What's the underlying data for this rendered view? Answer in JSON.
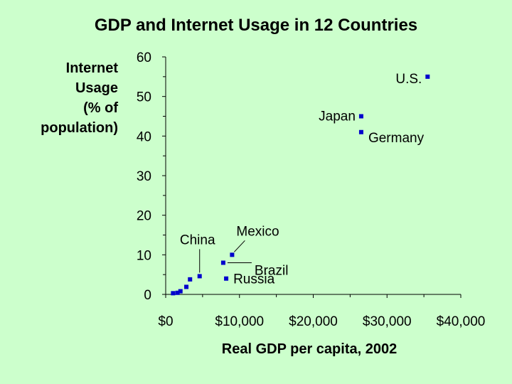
{
  "chart_data": {
    "type": "scatter",
    "title": "GDP and Internet Usage in 12 Countries",
    "ylabel_lines": [
      "Internet",
      "Usage",
      "(% of",
      "population)"
    ],
    "xlabel": "Real GDP per capita, 2002",
    "xlim": [
      0,
      40000
    ],
    "ylim": [
      0,
      60
    ],
    "x_ticks": [
      0,
      10000,
      20000,
      30000,
      40000
    ],
    "x_tick_labels": [
      "$0",
      "$10,000",
      "$20,000",
      "$30,000",
      "$40,000"
    ],
    "y_ticks": [
      0,
      10,
      20,
      30,
      40,
      50,
      60
    ],
    "y_tick_labels": [
      "0",
      "10",
      "20",
      "30",
      "40",
      "50",
      "60"
    ],
    "marker_color": "#0000cc",
    "points": [
      {
        "x": 35500,
        "y": 55,
        "label": "U.S."
      },
      {
        "x": 26500,
        "y": 45,
        "label": "Japan"
      },
      {
        "x": 26500,
        "y": 41,
        "label": "Germany"
      },
      {
        "x": 9000,
        "y": 10,
        "label": "Mexico"
      },
      {
        "x": 7800,
        "y": 8,
        "label": "Brazil"
      },
      {
        "x": 8200,
        "y": 4,
        "label": "Russia"
      },
      {
        "x": 4600,
        "y": 4.6,
        "label": "China"
      },
      {
        "x": 3300,
        "y": 3.8,
        "label": ""
      },
      {
        "x": 2800,
        "y": 1.9,
        "label": ""
      },
      {
        "x": 2000,
        "y": 0.8,
        "label": ""
      },
      {
        "x": 1600,
        "y": 0.4,
        "label": ""
      },
      {
        "x": 1000,
        "y": 0.3,
        "label": ""
      }
    ]
  }
}
